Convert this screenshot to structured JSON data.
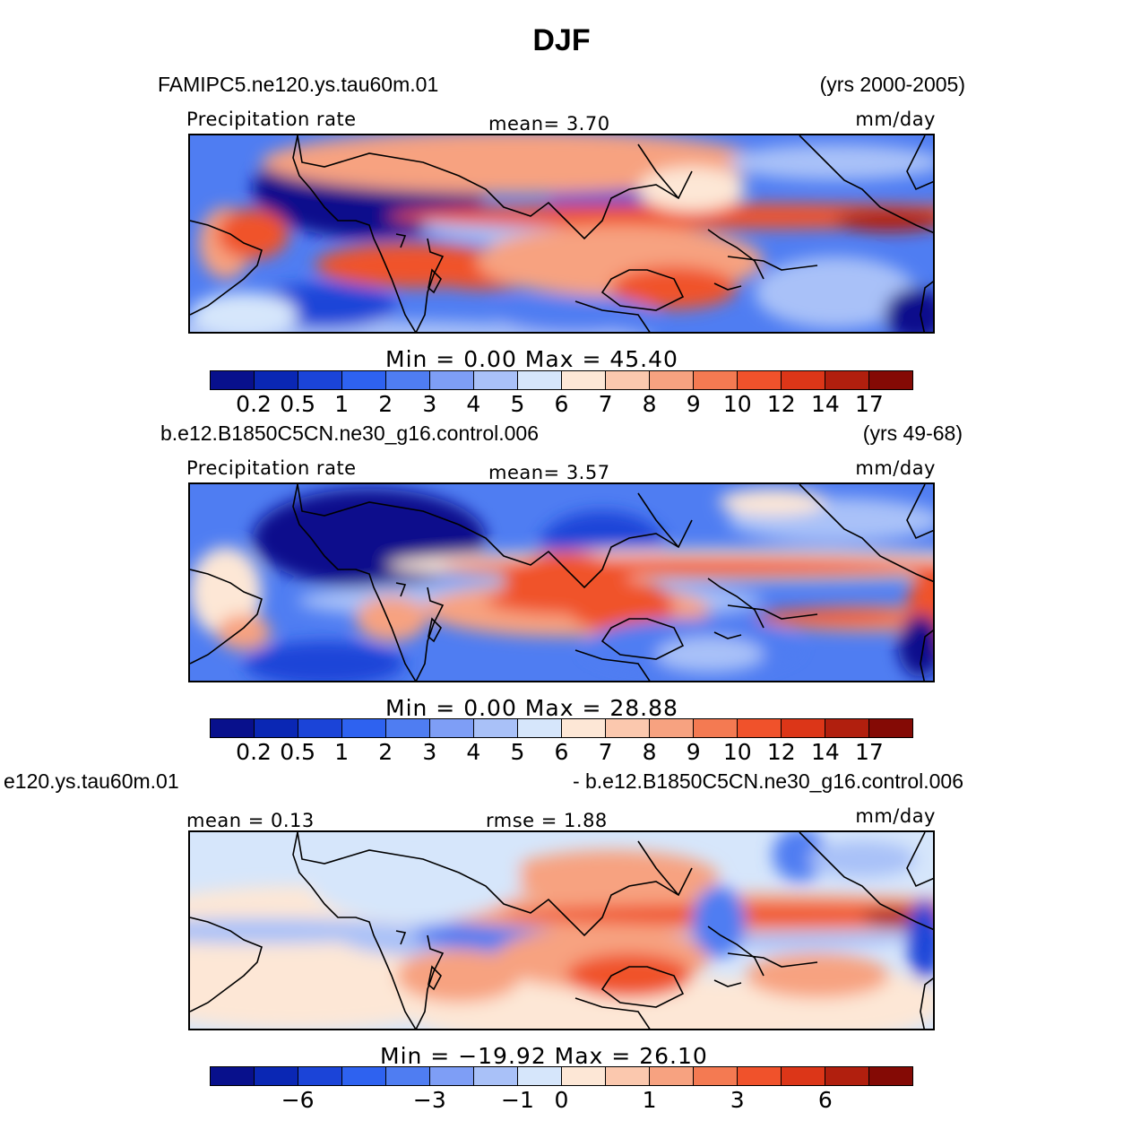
{
  "title": "DJF",
  "panels": [
    {
      "left_title": "FAMIPC5.ne120.ys.tau60m.01",
      "right_title": "(yrs 2000-2005)",
      "left_label": "Precipitation  rate",
      "center_label": "mean=     3.70",
      "units": "mm/day",
      "minmax": "Min  =     0.00  Max  =    45.40",
      "tick_labels": [
        "0.2",
        "0.5",
        "1",
        "2",
        "3",
        "4",
        "5",
        "6",
        "7",
        "8",
        "9",
        "10",
        "12",
        "14",
        "17"
      ]
    },
    {
      "left_title": "b.e12.B1850C5CN.ne30_g16.control.006",
      "right_title": "(yrs 49-68)",
      "left_label": "Precipitation  rate",
      "center_label": "mean=     3.57",
      "units": "mm/day",
      "minmax": "Min  =     0.00  Max  =    28.88",
      "tick_labels": [
        "0.2",
        "0.5",
        "1",
        "2",
        "3",
        "4",
        "5",
        "6",
        "7",
        "8",
        "9",
        "10",
        "12",
        "14",
        "17"
      ]
    },
    {
      "left_title": "e120.ys.tau60m.01",
      "right_title": "- b.e12.B1850C5CN.ne30_g16.control.006",
      "left_label": "mean  =     0.13",
      "center_label": "rmse  =     1.88",
      "units": "mm/day",
      "minmax": "Min  =  −19.92  Max  =    26.10",
      "tick_labels": [
        "−6",
        "−3",
        "−1",
        "0",
        "1",
        "3",
        "6"
      ]
    }
  ],
  "colorbar": {
    "colors": [
      "#08108c",
      "#0a27b4",
      "#1b44d8",
      "#2e62f0",
      "#4f7df2",
      "#7e9ef6",
      "#a9c1f8",
      "#d6e6fb",
      "#fde7d6",
      "#fbc8ae",
      "#f7a280",
      "#f47a52",
      "#f0522b",
      "#dc3618",
      "#b11f0e",
      "#840a05"
    ]
  },
  "map_fields": {
    "color_scale": [
      "#08108c",
      "#1b44d8",
      "#4f7df2",
      "#a9c1f8",
      "#d6e6fb",
      "#fde7d6",
      "#f7a280",
      "#f0522b",
      "#b11f0e"
    ]
  }
}
